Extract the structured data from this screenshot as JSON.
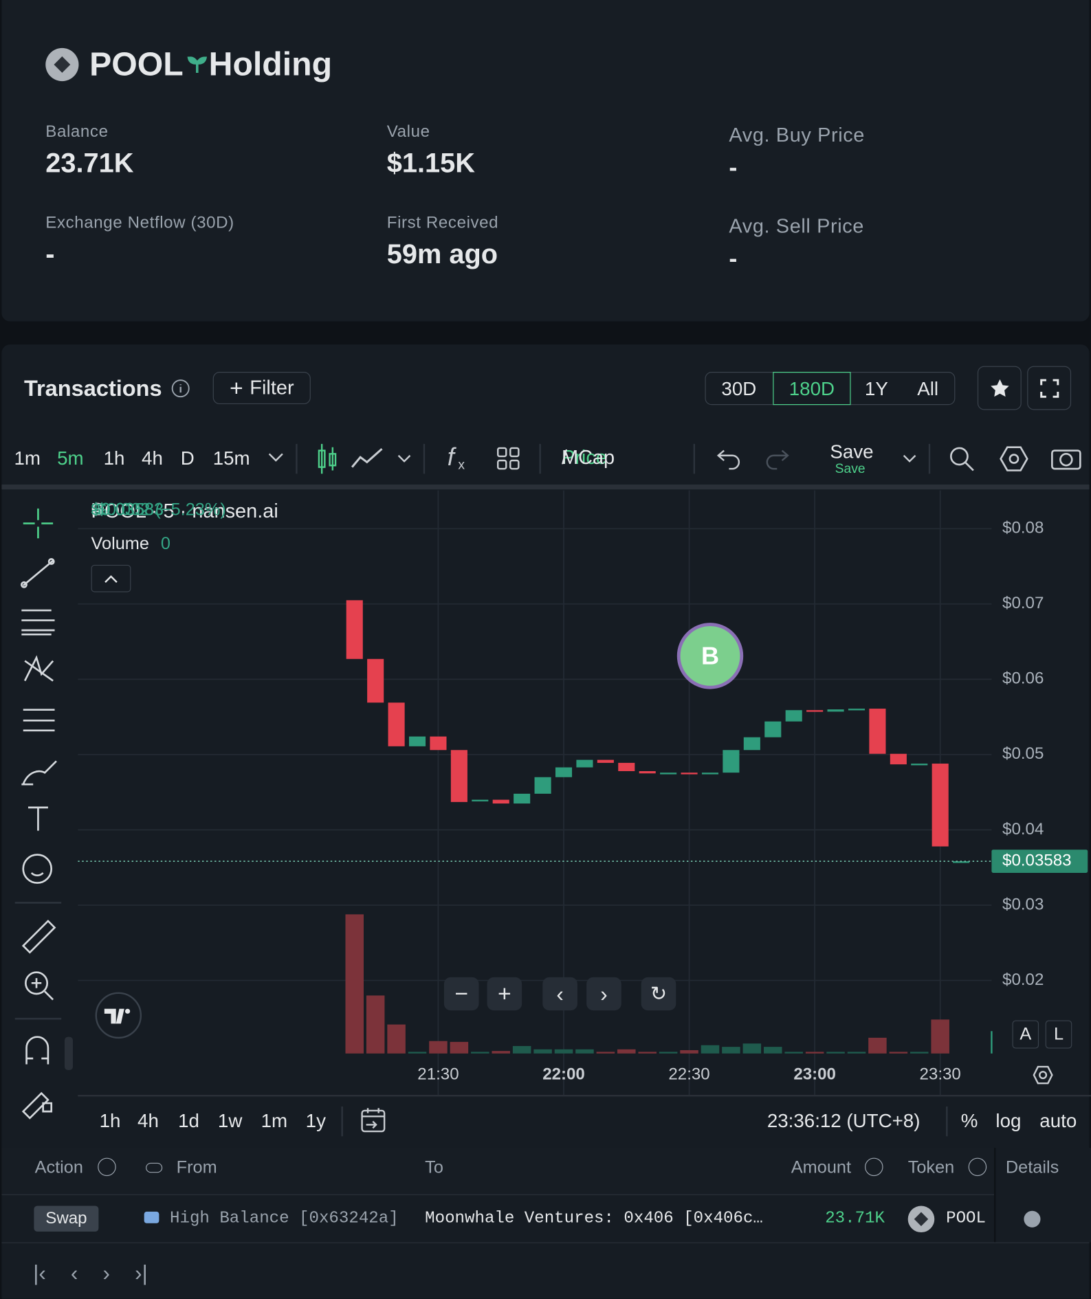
{
  "header": {
    "token": "POOL",
    "label": "Holding"
  },
  "stats": [
    {
      "label": "Balance",
      "value": "23.71K"
    },
    {
      "label": "Value",
      "value": "$1.15K"
    },
    {
      "label": "Avg. Buy Price",
      "value": "-"
    },
    {
      "label": "Exchange Netflow (30D)",
      "value": "-"
    },
    {
      "label": "First Received",
      "value": "59m ago"
    },
    {
      "label": "Avg. Sell Price",
      "value": "-"
    }
  ],
  "transactions": {
    "title": "Transactions",
    "filter": "Filter",
    "ranges": [
      "30D",
      "180D",
      "1Y",
      "All"
    ],
    "active_range": 1
  },
  "toolbar": {
    "intervals": [
      "1m",
      "5m",
      "1h",
      "4h",
      "D",
      "15m"
    ],
    "active_interval": 1,
    "price": "Price",
    "separator": "/",
    "mcap": "MCap",
    "save": "Save",
    "save_sub": "Save"
  },
  "chart_data": {
    "type": "candlestick",
    "legend": {
      "symbol": "POOL · 5 · nansen.ai",
      "o_label": "O",
      "o": "$0.0358",
      "h_label": "H",
      "h": "$0.03583",
      "l_label": "L",
      "l": "$0.0358",
      "c_label": "C",
      "c": "$0.03583",
      "change": "-$0.002 (−5.23%)",
      "volume_label": "Volume",
      "volume_value": "0"
    },
    "categories": [
      null,
      null,
      null,
      null,
      "21:30",
      null,
      null,
      null,
      null,
      null,
      "22:00",
      null,
      null,
      null,
      null,
      null,
      "22:30",
      null,
      null,
      null,
      null,
      null,
      "23:00",
      null,
      null,
      null,
      null,
      null,
      "23:30",
      null
    ],
    "open": [
      0.0705,
      0.0627,
      0.0569,
      0.0511,
      0.0524,
      0.0506,
      0.0438,
      0.044,
      0.0435,
      0.0448,
      0.047,
      0.0483,
      0.0493,
      0.0489,
      0.0478,
      0.0475,
      0.0476,
      0.0475,
      0.0476,
      0.0506,
      0.0523,
      0.0544,
      0.0559,
      0.0557,
      0.056,
      0.0561,
      0.0501,
      0.0487,
      0.0488,
      0.0358
    ],
    "close": [
      0.0627,
      0.0569,
      0.0511,
      0.0524,
      0.0506,
      0.0437,
      0.044,
      0.0435,
      0.0448,
      0.047,
      0.0483,
      0.0493,
      0.0489,
      0.0478,
      0.0475,
      0.0476,
      0.0475,
      0.0476,
      0.0506,
      0.0523,
      0.0544,
      0.0559,
      0.0557,
      0.056,
      0.0561,
      0.0501,
      0.0487,
      0.0488,
      0.0378,
      0.03583
    ],
    "volume": [
      168,
      70,
      35,
      2,
      15,
      14,
      2,
      3,
      9,
      5,
      5,
      5,
      2,
      5,
      2,
      2,
      4,
      10,
      8,
      12,
      8,
      2,
      2,
      2,
      2,
      19,
      2,
      2,
      41,
      0
    ],
    "up_color": "#2f9c7c",
    "down_color": "#e5414f",
    "up_volume_color": "#1f5b4d",
    "down_volume_color": "#7c333a",
    "ylim": [
      0.0103,
      0.0851
    ],
    "yticks": [
      {
        "value": 0.02,
        "label": "$0.02"
      },
      {
        "value": 0.03,
        "label": "$0.03"
      },
      {
        "value": 0.04,
        "label": "$0.04"
      },
      {
        "value": 0.05,
        "label": "$0.05"
      },
      {
        "value": 0.06,
        "label": "$0.06"
      },
      {
        "value": 0.07,
        "label": "$0.07"
      },
      {
        "value": 0.08,
        "label": "$0.08"
      }
    ],
    "last_price": {
      "value": 0.03583,
      "label": "$0.03583"
    },
    "marker": {
      "label": "B",
      "index": 17,
      "price": 0.0631
    },
    "grid": true
  },
  "chart_footer": {
    "ranges": [
      "1h",
      "4h",
      "1d",
      "1w",
      "1m",
      "1y"
    ],
    "time": "23:36:12 (UTC+8)",
    "percent": "%",
    "log": "log",
    "auto": "auto",
    "scale_a": "A",
    "scale_l": "L"
  },
  "table": {
    "headers": [
      "Action",
      "From",
      "To",
      "Amount",
      "Token",
      "Details"
    ],
    "rows": [
      [
        "Swap",
        "High Balance [0x63242a]",
        "Moonwhale Ventures: 0x406 [0x406c…",
        "23.71K",
        "POOL"
      ]
    ]
  }
}
